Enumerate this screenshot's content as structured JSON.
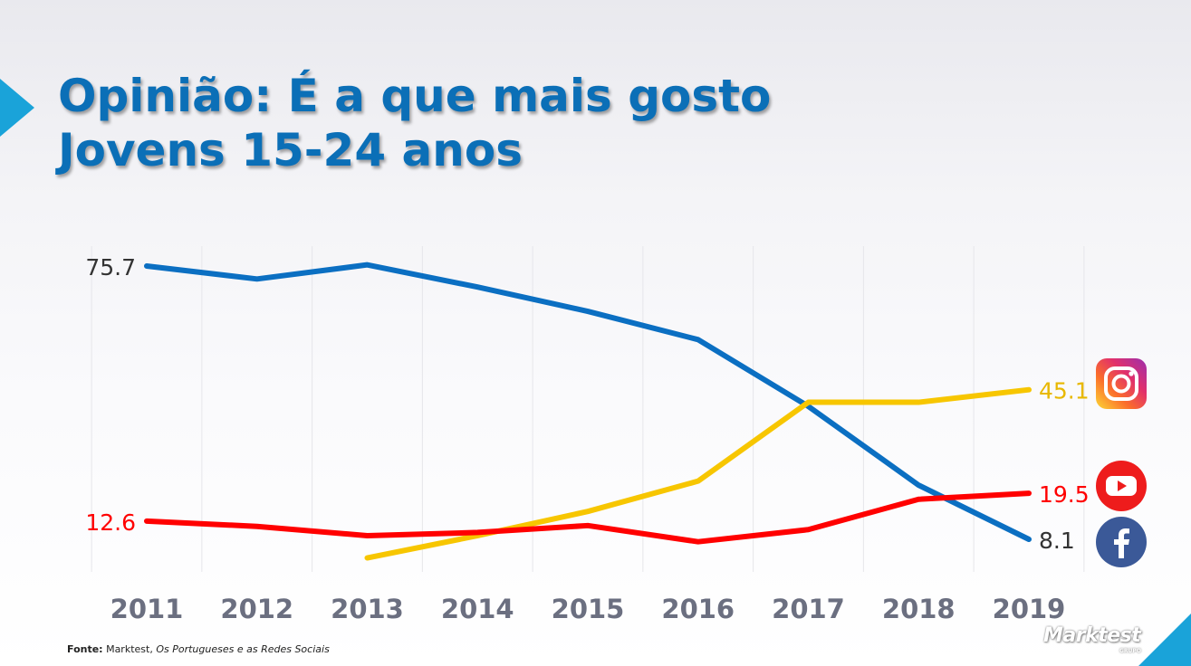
{
  "title": {
    "line1": "Opinião: É a que mais gosto",
    "line2": "Jovens 15-24 anos"
  },
  "source": {
    "label": "Fonte:",
    "publisher": "Marktest,",
    "work": "Os Portugueses e as Redes Sociais"
  },
  "logo": {
    "text": "Marktest",
    "sub": "GRUPO"
  },
  "icons": {
    "instagram": "instagram-icon",
    "youtube": "youtube-icon",
    "facebook": "facebook-icon"
  },
  "chart_data": {
    "type": "line",
    "title": "",
    "xlabel": "",
    "ylabel": "",
    "ylim": [
      0,
      80
    ],
    "grid": {
      "vertical": true,
      "horizontal": false
    },
    "categories": [
      "2011",
      "2012",
      "2013",
      "2014",
      "2015",
      "2016",
      "2017",
      "2018",
      "2019"
    ],
    "series": [
      {
        "key": "facebook",
        "color": "#0b6fc2",
        "values": [
          75.7,
          72.5,
          76.0,
          70.5,
          64.5,
          57.5,
          41.0,
          21.5,
          8.1
        ]
      },
      {
        "key": "instagram",
        "color": "#f7c600",
        "values": [
          null,
          null,
          3.5,
          9.0,
          15.0,
          22.5,
          42.0,
          42.0,
          45.1
        ]
      },
      {
        "key": "youtube",
        "color": "#ff0000",
        "values": [
          12.6,
          11.3,
          9.0,
          9.8,
          11.5,
          7.5,
          10.5,
          18.0,
          19.5
        ]
      }
    ],
    "start_labels": [
      {
        "series": "facebook",
        "text": "75.7",
        "color": "#333333"
      },
      {
        "series": "youtube",
        "text": "12.6",
        "color": "#ff0000"
      }
    ],
    "end_labels": [
      {
        "series": "instagram",
        "text": "45.1",
        "color": "#e8b800"
      },
      {
        "series": "youtube",
        "text": "19.5",
        "color": "#ff0000"
      },
      {
        "series": "facebook",
        "text": "8.1",
        "color": "#333333"
      }
    ]
  }
}
